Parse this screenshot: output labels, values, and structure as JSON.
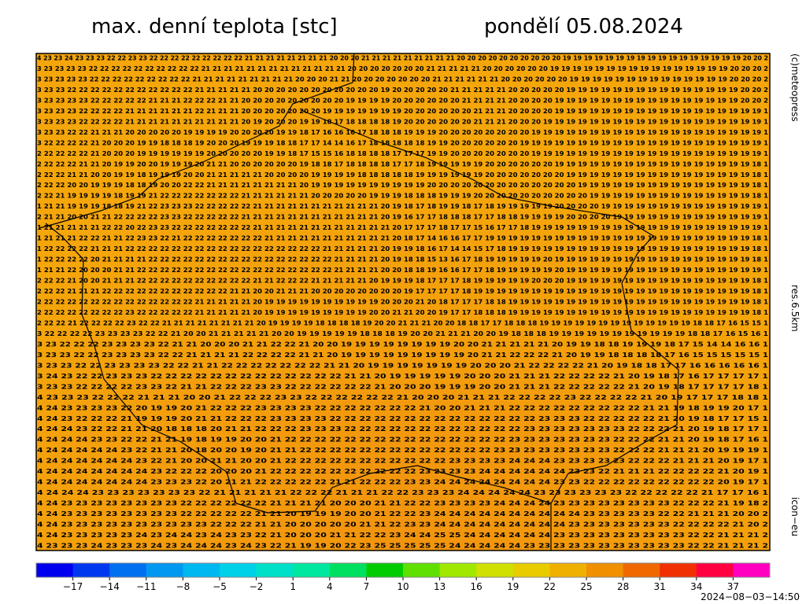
{
  "header": {
    "title": "max. denní teplota [stc]",
    "date": "pondělí 05.08.2024"
  },
  "side_labels": {
    "copyright": "(c)meteopress",
    "resolution": "res.6.5km",
    "model": "icon−eu"
  },
  "timestamp": "2024−08−03−14:50",
  "colorbar": {
    "range": [
      -20,
      40
    ],
    "colors": [
      "#0000ee",
      "#0038f0",
      "#0070f0",
      "#0098f0",
      "#00b8f0",
      "#00d0e8",
      "#00e0c8",
      "#00e8a0",
      "#00e060",
      "#00cc00",
      "#60e000",
      "#a0e800",
      "#d0e000",
      "#e8cc00",
      "#f0b000",
      "#f09000",
      "#f06800",
      "#f03000",
      "#ff0040",
      "#ff00c0"
    ],
    "ticks": [
      {
        "value": -17,
        "label": "−17"
      },
      {
        "value": -14,
        "label": "−14"
      },
      {
        "value": -11,
        "label": "−11"
      },
      {
        "value": -8,
        "label": "−8"
      },
      {
        "value": -5,
        "label": "−5"
      },
      {
        "value": -2,
        "label": "−2"
      },
      1,
      4,
      7,
      10,
      13,
      16,
      19,
      22,
      25,
      28,
      31,
      34,
      37
    ]
  },
  "map": {
    "background": "#f5a30a",
    "rows": [
      "4 23 23 24 23 23 23 22 22 23 23 22 22 22 22 22 22 22 22 22 21 21 21 21 21 21 21 21 20 20 20 21 21 21 21 21 21 21 21 21 20 20 20 20 20 20 20 20 20 20 19 19 19 19 19 19 19 19 19 19 19 19 19 19 19 19 19 20 20 2",
      "3 23 23 23 23 22 22 22 22 22 22 22 22 22 22 21 21 21 21 21 21 21 21 21 21 21 21 21 20 20 20 20 20 20 20 21 21 21 21 21 20 20 20 20 20 20 19 19 19 19 19 19 19 19 19 19 19 19 19 19 19 19 20 20 20 2",
      "3 23 23 23 23 22 22 22 22 22 22 22 22 22 21 21 21 21 21 21 21 21 21 20 20 20 21 21 20 20 20 20 20 20 20 21 21 21 21 21 21 20 20 20 20 20 20 19 19 19 19 19 19 19 19 19 19 19 19 19 19 20 20 20 2",
      "3 23 23 22 22 22 22 22 22 22 22 22 22 22 21 21 21 21 21 20 20 20 20 20 20 20 20 20 20 20 19 20 20 20 20 20 21 21 21 21 21 20 20 20 20 20 19 19 19 19 19 19 19 19 19 19 19 19 19 19 19 20 20 2",
      "3 23 23 23 23 22 22 22 22 22 21 21 21 22 22 22 21 21 20 20 20 20 20 20 20 20 20 19 19 19 19 20 20 20 20 20 20 21 21 21 21 20 20 20 20 19 19 19 19 19 19 19 19 19 19 19 19 19 19 19 19 20 20 2",
      "3 23 23 23 22 22 22 22 21 21 21 21 21 21 22 21 21 21 20 20 20 20 20 20 20 19 19 19 19 19 19 19 20 20 20 20 20 20 21 21 21 20 20 20 20 19 19 19 19 19 19 19 19 19 19 19 19 19 19 19 19 19 19 1",
      "3 23 23 23 22 22 22 22 21 21 21 21 21 21 21 21 21 21 20 19 20 20 20 19 19 18 17 18 18 18 18 19 20 20 20 20 20 20 21 21 21 20 20 20 19 19 19 19 19 19 19 19 19 19 19 19 19 19 19 19 19 19 19 1",
      "3 23 23 22 22 21 21 21 20 20 20 20 20 19 19 19 19 20 20 20 20 19 19 18 17 16 16 16 17 18 18 18 19 19 19 20 20 20 20 20 20 20 20 19 19 19 19 19 19 19 19 19 19 19 19 19 19 19 19 19 19 19 19 1",
      "3 22 22 22 22 21 20 20 20 19 19 18 18 18 19 20 20 20 19 19 19 18 18 17 17 14 14 16 17 18 18 18 18 18 19 19 20 20 20 20 20 20 19 19 19 19 19 19 19 19 19 19 19 19 19 19 19 19 19 19 19 19 19 1",
      "2 22 22 22 22 21 20 20 20 19 19 19 19 19 19 20 20 20 20 20 19 19 18 17 15 15 16 18 18 18 18 17 17 17 19 19 20 20 20 20 20 20 20 19 19 19 19 19 19 19 19 19 19 19 19 19 19 19 19 19 19 19 19 1",
      "2 22 22 22 21 21 20 19 19 20 20 19 19 19 20 21 21 20 20 20 20 20 20 19 18 18 17 18 18 18 18 17 17 18 19 19 19 19 19 20 20 20 20 20 20 19 19 19 19 19 19 19 19 19 19 19 19 19 19 19 19 19 18 1",
      "2 22 22 21 21 20 20 19 19 18 19 19 19 20 20 21 21 21 21 21 20 20 20 20 19 19 19 19 18 18 18 18 18 19 19 19 19 19 19 20 20 20 20 20 20 20 19 19 19 19 19 19 19 19 19 19 19 19 19 19 19 19 18 1",
      "2 22 22 20 20 19 19 19 18 18 19 20 20 22 22 21 21 21 21 21 21 21 21 20 19 19 19 19 19 19 19 19 19 19 20 20 20 20 20 20 20 20 20 20 20 20 20 19 19 19 19 19 19 19 19 19 19 19 19 19 19 19 18 1",
      "2 22 21 19 19 19 19 18 19 19 21 22 22 22 22 22 22 22 21 21 21 21 21 21 20 20 20 20 20 19 19 19 18 18 18 19 19 19 20 20 20 20 20 20 20 20 20 20 19 19 19 19 19 19 19 19 19 19 19 19 19 19 18 1",
      "1 21 21 19 19 19 18 18 19 21 22 23 23 23 22 22 22 22 22 21 21 21 21 21 21 21 21 21 21 21 20 19 18 17 18 19 19 18 17 18 19 19 19 19 19 20 20 20 20 19 19 19 19 19 19 19 19 19 19 19 19 19 19 1",
      "2 21 21 20 20 21 21 22 22 22 22 23 23 22 22 22 22 22 21 21 21 21 21 21 21 21 21 21 21 21 20 19 16 17 17 18 18 18 17 17 18 18 19 19 19 19 20 20 20 20 19 19 19 19 19 19 19 19 19 19 19 19 19 1",
      "1 21 21 21 21 21 22 22 20 22 23 23 22 22 22 22 22 22 22 21 21 21 21 21 21 21 21 21 21 21 21 20 17 17 17 18 17 17 15 16 17 17 18 19 19 19 19 19 19 19 19 19 19 19 19 19 19 19 19 19 19 19 19 1",
      "1 21 21 21 22 22 21 21 22 23 23 22 21 22 22 22 22 22 22 22 21 21 21 21 21 21 21 21 21 21 21 20 18 17 14 16 16 17 17 19 19 19 19 19 19 19 19 19 19 19 19 19 19 19 19 19 19 19 19 19 19 19 18 1",
      "1 22 22 22 22 21 21 21 22 22 22 22 22 22 22 22 22 22 22 22 22 22 22 22 22 21 21 21 21 21 20 19 19 18 16 17 14 14 15 17 18 19 19 19 19 19 19 19 19 19 19 19 19 19 19 19 19 19 19 19 19 19 18 1",
      "1 22 22 22 22 20 21 21 21 21 22 22 22 22 22 22 22 22 22 22 22 22 22 22 22 22 21 21 21 21 20 19 18 18 15 13 16 17 18 19 19 19 19 19 20 19 19 19 19 19 19 19 19 19 19 19 19 19 19 19 19 19 18 1",
      "1 21 21 22 20 20 20 21 21 22 22 22 22 22 22 22 22 22 22 22 22 22 22 22 22 22 21 21 21 21 20 20 18 18 19 16 16 17 17 18 19 19 19 19 19 20 19 19 19 19 19 19 19 19 19 19 19 19 19 19 19 19 19 1",
      "2 22 22 21 20 20 21 21 21 22 22 22 22 22 22 22 22 22 22 21 21 22 22 22 21 21 21 21 21 20 19 19 19 18 17 17 17 18 19 19 19 19 19 20 20 20 19 19 19 19 19 19 19 19 19 19 19 19 19 19 19 19 18 1",
      "2 22 22 21 21 21 22 22 22 22 22 22 22 22 22 22 22 21 21 20 20 21 21 21 20 20 20 20 20 20 20 20 19 17 17 17 17 18 19 19 19 19 19 19 19 19 19 19 19 19 19 19 19 19 19 19 19 19 19 19 19 19 18 1",
      "2 22 22 22 22 22 22 22 22 22 22 22 22 22 21 21 21 21 21 20 19 19 19 19 19 19 19 19 19 19 20 20 20 21 20 18 17 17 17 18 18 19 19 19 19 19 19 19 19 19 19 19 19 19 19 19 19 19 19 19 19 19 18 1",
      "2 22 22 22 22 22 22 22 23 22 22 22 22 22 21 21 21 21 21 20 19 19 19 19 19 19 19 19 19 20 20 21 21 20 20 19 17 17 18 18 18 19 19 19 19 19 19 19 19 19 19 19 19 19 19 19 19 19 19 19 19 19 18 1",
      "2 22 22 21 22 22 22 22 23 22 22 21 21 21 21 21 21 21 21 20 19 19 19 19 18 18 18 18 19 20 20 21 21 21 20 20 18 18 17 17 18 18 18 19 19 19 19 19 19 19 19 19 19 19 19 19 18 18 17 16 15 15 1",
      "3 22 22 22 22 23 23 23 23 22 22 21 20 20 21 21 21 21 21 20 20 19 19 19 19 19 18 18 18 19 20 20 21 21 21 20 20 19 18 18 18 19 19 19 19 19 19 19 19 19 19 19 18 18 17 16 15 16 1",
      "3 23 22 22 22 23 23 23 23 22 21 21 20 20 20 21 21 22 22 21 20 20 19 19 19 19 19 19 19 19 20 20 21 21 21 21 21 20 19 19 18 18 19 19 19 18 17 15 14 14 16 16 1",
      "3 23 23 22 22 23 23 23 23 22 22 21 21 21 21 22 22 22 22 21 21 20 19 19 19 19 19 19 19 19 19 20 21 21 22 22 22 21 20 19 19 18 18 18 18 17 16 15 15 15 15 15 1",
      "3 23 23 22 22 23 23 23 23 22 22 21 21 22 22 22 22 22 22 22 21 21 20 19 19 19 19 19 19 19 20 20 20 21 22 22 22 22 21 20 19 18 18 17 17 16 16 16 16 16 1",
      "3 24 23 22 22 23 23 23 22 22 22 22 22 22 22 22 22 22 22 22 22 21 21 20 19 19 19 19 19 20 20 20 21 21 21 22 22 22 22 21 20 19 18 17 16 17 17 17 17 1",
      "3 23 23 22 22 22 22 23 23 22 21 21 22 22 22 23 23 22 22 22 22 22 22 21 20 20 20 19 19 19 20 20 21 21 21 22 22 22 22 22 21 20 19 18 17 17 17 17 18 1",
      "4 23 23 23 22 22 22 21 21 21 20 20 21 22 22 22 23 23 22 22 22 22 22 22 21 20 20 20 21 21 21 22 22 22 22 23 22 22 22 22 21 20 19 17 17 17 18 18 1",
      "4 24 23 23 23 23 22 20 19 19 20 21 22 22 22 23 23 23 23 22 22 22 22 22 22 22 21 20 20 21 21 21 22 22 22 22 22 22 22 22 22 21 21 19 18 19 19 20 17 1",
      "4 24 23 22 22 22 21 19 19 19 20 21 21 22 22 22 23 23 23 23 22 22 22 22 22 22 22 22 22 22 22 22 22 22 23 23 23 22 22 22 22 22 21 20 19 18 17 17 15 1",
      "4 24 24 23 22 22 21 21 20 18 18 18 20 21 21 22 22 22 23 23 23 22 22 22 22 22 22 22 22 22 22 22 22 23 23 23 23 23 23 23 22 22 22 21 20 19 18 17 17 1",
      "4 24 24 24 23 23 22 22 21 21 19 18 19 19 20 20 21 22 22 22 22 22 22 22 22 22 22 22 22 22 22 22 23 23 23 23 23 23 23 22 22 22 21 21 20 19 18 17 16 1",
      "4 24 24 24 24 24 23 22 21 21 20 18 20 20 19 20 21 21 22 22 22 22 22 22 22 22 22 22 22 22 22 23 23 23 23 23 23 23 23 22 22 22 21 21 21 20 19 19 19 1",
      "4 24 24 24 24 24 24 23 22 21 20 20 21 21 20 20 21 22 22 22 22 22 22 22 22 22 22 22 23 23 23 23 24 24 24 23 23 23 23 23 22 22 22 21 21 21 20 19 17 1",
      "4 24 24 24 24 24 24 24 23 22 22 22 20 20 20 21 22 22 22 22 22 22 22 22 22 22 23 23 23 23 24 24 24 24 24 24 23 23 22 21 21 21 22 22 22 22 21 20 19 1",
      "4 24 24 24 24 24 24 24 23 23 23 22 20 21 21 22 22 22 22 22 21 21 22 22 22 23 23 24 24 24 24 24 24 24 24 23 23 22 22 22 22 22 22 22 22 22 20 19 17 1",
      "4 24 24 24 23 23 23 23 23 23 23 22 21 21 21 21 21 22 22 22 21 21 21 22 22 23 23 23 24 24 24 24 24 23 23 23 23 23 23 22 22 22 22 22 21 17 17 16 1",
      "4 24 23 23 23 23 23 23 23 23 22 22 22 22 22 22 21 21 21 21 20 20 20 21 21 22 22 23 23 23 23 24 24 24 24 23 23 23 23 23 23 23 23 22 22 22 21 19 18 2",
      "4 24 23 23 23 23 23 23 23 23 22 22 22 22 22 21 21 20 19 19 19 20 20 21 22 22 23 24 24 24 24 24 24 24 24 24 24 23 23 23 23 23 22 22 21 21 21 20 20 2",
      "4 24 23 23 23 23 23 23 23 23 23 23 22 22 22 21 21 20 20 20 20 20 21 21 22 23 23 24 24 24 24 24 24 24 24 24 23 23 23 23 23 23 23 22 22 22 22 21 20 2",
      "4 24 23 23 23 23 23 24 23 24 24 23 24 23 23 22 21 20 20 20 21 21 22 22 23 24 24 25 25 24 24 24 24 24 24 23 23 23 23 23 23 23 23 23 22 22 21 21 21 2",
      "4 23 23 23 24 23 23 23 24 23 24 24 24 23 24 23 22 21 19 19 20 22 23 25 25 25 25 25 24 24 24 24 24 23 23 23 23 23 23 23 23 23 23 23 22 22 21 21 21 2"
    ]
  }
}
